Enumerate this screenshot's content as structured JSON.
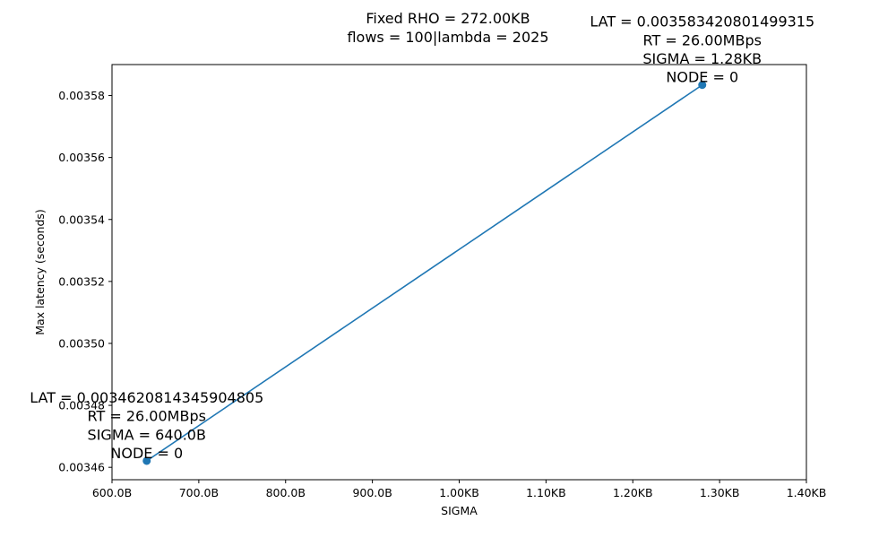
{
  "chart_data": {
    "type": "line",
    "title_lines": [
      "Fixed RHO = 272.00KB",
      "flows = 100|lambda = 2025"
    ],
    "xlabel": "SIGMA",
    "ylabel": "Max latency (seconds)",
    "xlim": [
      600,
      1400
    ],
    "ylim": [
      0.003456,
      0.00359
    ],
    "x_ticks": [
      {
        "value": 600,
        "label": "600.0B"
      },
      {
        "value": 700,
        "label": "700.0B"
      },
      {
        "value": 800,
        "label": "800.0B"
      },
      {
        "value": 900,
        "label": "900.0B"
      },
      {
        "value": 1000,
        "label": "1.00KB"
      },
      {
        "value": 1100,
        "label": "1.10KB"
      },
      {
        "value": 1200,
        "label": "1.20KB"
      },
      {
        "value": 1300,
        "label": "1.30KB"
      },
      {
        "value": 1400,
        "label": "1.40KB"
      }
    ],
    "y_ticks": [
      {
        "value": 0.00346,
        "label": "0.00346"
      },
      {
        "value": 0.00348,
        "label": "0.00348"
      },
      {
        "value": 0.0035,
        "label": "0.00350"
      },
      {
        "value": 0.00352,
        "label": "0.00352"
      },
      {
        "value": 0.00354,
        "label": "0.00354"
      },
      {
        "value": 0.00356,
        "label": "0.00356"
      },
      {
        "value": 0.00358,
        "label": "0.00358"
      }
    ],
    "series": [
      {
        "color": "#1f77b4",
        "points": [
          {
            "x": 640,
            "y": 0.0034620814345904805,
            "annotation": [
              "LAT = 0.0034620814345904805",
              "RT = 26.00MBps",
              "SIGMA = 640.0B",
              "NODE = 0"
            ]
          },
          {
            "x": 1280,
            "y": 0.003583420801499315,
            "annotation": [
              "LAT = 0.003583420801499315",
              "RT = 26.00MBps",
              "SIGMA = 1.28KB",
              "NODE = 0"
            ]
          }
        ]
      }
    ],
    "grid": false,
    "legend": false
  }
}
